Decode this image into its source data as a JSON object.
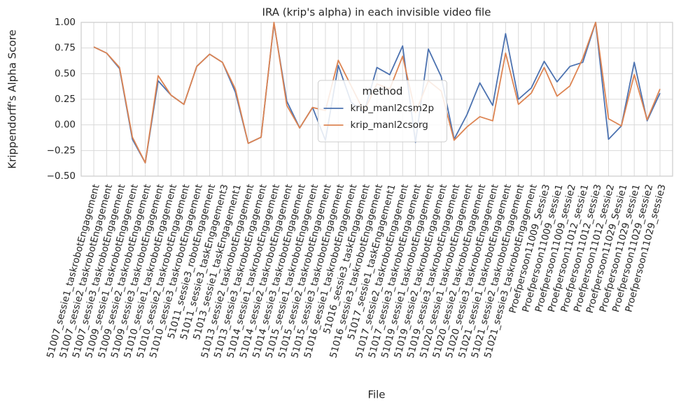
{
  "chart_data": {
    "type": "line",
    "title": "IRA (krip's alpha) in each invisible video file",
    "x_label": "File",
    "y_label": "Krippendorff's Alpha Score",
    "legend_title": "method",
    "legend": "center",
    "grid": true,
    "categories": [
      "51007_sessie1_taskrobotEngagement",
      "51007_sessie2_taskrobotEngagement",
      "51007_sessie3_taskrobotEngagement",
      "51009_sessie1_taskrobotEngagement",
      "51009_sessie2_taskrobotEngagement",
      "51009_sessie3_taskrobotEngagement",
      "51010_sessie1_taskrobotEngagement",
      "51010_sessie2_taskrobotEngagement",
      "51010_sessie3_taskrobotEngagement",
      "51011_sessie3_robotEngagement",
      "51011_sessie3_taskEngagement3",
      "51013_sessie1_taskEngagement1",
      "51013_sessie2_taskrobotEngagement",
      "51013_sessie3_taskrobotEngagement",
      "51014_sessie1_taskrobotEngagement",
      "51014_sessie2_taskrobotEngagement",
      "51014_sessie3_taskrobotEngagement",
      "51015_sessie1_taskrobotEngagement",
      "51015_sessie2_taskrobotEngagement",
      "51015_sessie3_taskrobotEngagement",
      "51016_sessie1_taskrobotEngagement",
      "51016_sessie3_taskEngagement",
      "51016_sessie3_taskrobotEngagement",
      "51017_sessie1_taskEngagement1",
      "51017_sessie2_taskrobotEngagement",
      "51017_sessie3_taskrobotEngagement",
      "51019_sessie1_taskrobotEngagement",
      "51019_sessie2_taskrobotEngagement",
      "51019_sessie3_taskrobotEngagement",
      "51020_sessie1_taskrobotEngagement",
      "51020_sessie2_taskrobotEngagement",
      "51020_sessie3_taskrobotEngagement",
      "51021_sessie1_taskrobotEngagement",
      "51021_sessie2_taskrobotEngagement",
      "51021_sessie3_taskrobotEngagement",
      "Proefpersoon11009_Sessie3",
      "Proefpersoon11009_sessie1",
      "Proefpersoon11009_sessie2",
      "Proefpersoon11012_sessie1",
      "Proefpersoon11012_sessie3",
      "Proefpersoon11012_sessie2",
      "Proefpersoon11029_Sessie1",
      "Proefpersoon11029_sessie1",
      "Proefpersoon11029_sessie2",
      "Proefpersoon11029_sessie3"
    ],
    "series": [
      {
        "name": "krip_manl2csm2p",
        "color": "#4c72b0",
        "values": [
          0.76,
          0.7,
          0.55,
          -0.14,
          -0.37,
          0.43,
          0.29,
          0.2,
          0.57,
          0.69,
          0.61,
          0.32,
          -0.18,
          -0.12,
          0.99,
          0.23,
          -0.03,
          0.17,
          -0.15,
          0.58,
          0.22,
          0.12,
          0.56,
          0.49,
          0.77,
          -0.17,
          0.74,
          0.47,
          -0.14,
          0.1,
          0.41,
          0.19,
          0.89,
          0.25,
          0.36,
          0.62,
          0.42,
          0.57,
          0.61,
          1.0,
          -0.14,
          -0.01,
          0.61,
          0.04,
          0.31
        ]
      },
      {
        "name": "krip_manl2csorg",
        "color": "#dd8452",
        "values": [
          0.76,
          0.7,
          0.56,
          -0.12,
          -0.37,
          0.48,
          0.29,
          0.2,
          0.57,
          0.69,
          0.61,
          0.35,
          -0.18,
          -0.12,
          1.0,
          0.19,
          -0.03,
          0.17,
          0.14,
          0.63,
          0.38,
          0.13,
          0.4,
          0.35,
          0.67,
          0.12,
          0.43,
          0.33,
          -0.15,
          -0.02,
          0.08,
          0.04,
          0.7,
          0.2,
          0.31,
          0.56,
          0.28,
          0.38,
          0.65,
          1.0,
          0.06,
          -0.01,
          0.49,
          0.05,
          0.35
        ]
      }
    ],
    "ylim": [
      -0.5,
      1.0
    ],
    "yticks": [
      {
        "value": -0.5,
        "label": "−0.50"
      },
      {
        "value": -0.25,
        "label": "−0.25"
      },
      {
        "value": 0,
        "label": "0.00"
      },
      {
        "value": 0.25,
        "label": "0.25"
      },
      {
        "value": 0.5,
        "label": "0.50"
      },
      {
        "value": 0.75,
        "label": "0.75"
      },
      {
        "value": 1.0,
        "label": "1.00"
      }
    ]
  }
}
